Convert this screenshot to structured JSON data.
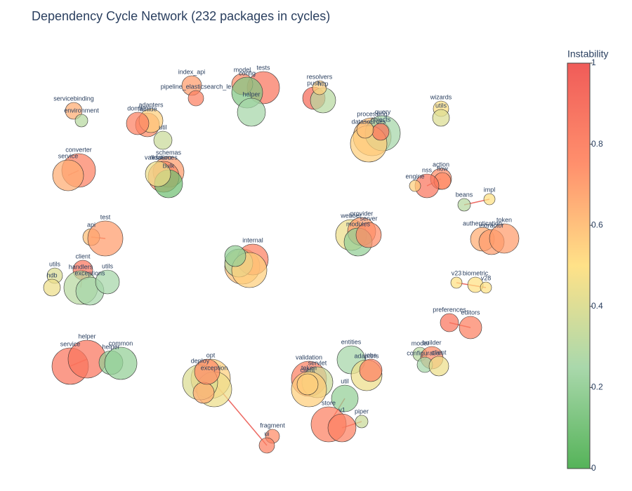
{
  "chart_data": {
    "type": "network",
    "title": "Dependency Cycle Network (232 packages in cycles)",
    "colorbar_title": "Instability",
    "colorbar_ticks": [
      0,
      0.2,
      0.4,
      0.6,
      0.8,
      1
    ],
    "colorscale": [
      [
        0,
        "#4caf50"
      ],
      [
        0.25,
        "#a5d6a7"
      ],
      [
        0.5,
        "#ffe082"
      ],
      [
        0.75,
        "#ff8a65"
      ],
      [
        1,
        "#ef5350"
      ]
    ],
    "edge_color": "#e8453c",
    "nodes": [
      {
        "label": "servicebinding",
        "x": -2.95,
        "y": 2.02,
        "size": 24,
        "instability": 0.65
      },
      {
        "label": "environment",
        "x": -2.84,
        "y": 1.88,
        "size": 18,
        "instability": 0.3
      },
      {
        "label": "converter",
        "x": -2.88,
        "y": 1.17,
        "size": 48,
        "instability": 0.8
      },
      {
        "label": "service",
        "x": -3.03,
        "y": 1.1,
        "size": 44,
        "instability": 0.65
      },
      {
        "label": "api",
        "x": -2.7,
        "y": 0.22,
        "size": 24,
        "instability": 0.6
      },
      {
        "label": "test",
        "x": -2.5,
        "y": 0.2,
        "size": 50,
        "instability": 0.7
      },
      {
        "label": "utils",
        "x": -3.22,
        "y": -0.33,
        "size": 22,
        "instability": 0.4
      },
      {
        "label": "hdb",
        "x": -3.26,
        "y": -0.5,
        "size": 24,
        "instability": 0.45
      },
      {
        "label": "client",
        "x": -2.82,
        "y": -0.25,
        "size": 28,
        "instability": 0.85
      },
      {
        "label": "handlers",
        "x": -2.85,
        "y": -0.5,
        "size": 48,
        "instability": 0.3
      },
      {
        "label": "exceptions",
        "x": -2.72,
        "y": -0.55,
        "size": 40,
        "instability": 0.25
      },
      {
        "label": "utils",
        "x": -2.47,
        "y": -0.42,
        "size": 34,
        "instability": 0.25
      },
      {
        "label": "service",
        "x": -3.0,
        "y": -1.62,
        "size": 52,
        "instability": 0.85
      },
      {
        "label": "helper",
        "x": -2.76,
        "y": -1.52,
        "size": 54,
        "instability": 0.85
      },
      {
        "label": "helper",
        "x": -2.42,
        "y": -1.57,
        "size": 34,
        "instability": 0.2
      },
      {
        "label": "common",
        "x": -2.28,
        "y": -1.58,
        "size": 46,
        "instability": 0.2
      },
      {
        "label": "index_api",
        "x": -1.27,
        "y": 2.38,
        "size": 28,
        "instability": 0.7
      },
      {
        "label": "pipeline_elasticsearch_le",
        "x": -1.21,
        "y": 2.2,
        "size": 22,
        "instability": 0.8
      },
      {
        "label": "facade",
        "x": -1.9,
        "y": 1.82,
        "size": 34,
        "instability": 0.75
      },
      {
        "label": "adapters",
        "x": -1.85,
        "y": 1.88,
        "size": 34,
        "instability": 0.55
      },
      {
        "label": "domain",
        "x": -2.04,
        "y": 1.84,
        "size": 32,
        "instability": 0.8
      },
      {
        "label": "util",
        "x": -1.68,
        "y": 1.6,
        "size": 26,
        "instability": 0.35
      },
      {
        "label": "schemas",
        "x": -1.6,
        "y": 1.15,
        "size": 44,
        "instability": 0.7
      },
      {
        "label": "resources",
        "x": -1.67,
        "y": 1.08,
        "size": 44,
        "instability": 0.75
      },
      {
        "label": "bulk",
        "x": -1.6,
        "y": 0.98,
        "size": 40,
        "instability": 0.1
      },
      {
        "label": "validation",
        "x": -1.75,
        "y": 1.12,
        "size": 36,
        "instability": 0.45
      },
      {
        "label": "tests",
        "x": -0.25,
        "y": 2.35,
        "size": 46,
        "instability": 0.85
      },
      {
        "label": "model",
        "x": -0.55,
        "y": 2.4,
        "size": 30,
        "instability": 0.75
      },
      {
        "label": "config",
        "x": -0.48,
        "y": 2.28,
        "size": 44,
        "instability": 0.15
      },
      {
        "label": "helper",
        "x": -0.42,
        "y": 2.0,
        "size": 40,
        "instability": 0.25
      },
      {
        "label": "push",
        "x": 0.47,
        "y": 2.2,
        "size": 32,
        "instability": 0.9
      },
      {
        "label": "http",
        "x": 0.6,
        "y": 2.17,
        "size": 36,
        "instability": 0.3
      },
      {
        "label": "resolvers",
        "x": 0.55,
        "y": 2.35,
        "size": 20,
        "instability": 0.55
      },
      {
        "label": "wizards",
        "x": 2.28,
        "y": 2.05,
        "size": 22,
        "instability": 0.5
      },
      {
        "label": "utils",
        "x": 2.28,
        "y": 1.92,
        "size": 24,
        "instability": 0.4
      },
      {
        "label": "processing",
        "x": 1.3,
        "y": 1.65,
        "size": 54,
        "instability": 0.6
      },
      {
        "label": "query",
        "x": 1.45,
        "y": 1.7,
        "size": 50,
        "instability": 0.25
      },
      {
        "label": "datasources",
        "x": 1.25,
        "y": 1.55,
        "size": 52,
        "instability": 0.55
      },
      {
        "label": "objects",
        "x": 1.42,
        "y": 1.72,
        "size": 24,
        "instability": 0.85
      },
      {
        "label": null,
        "x": 1.2,
        "y": 1.75,
        "size": 24,
        "instability": 0.6
      },
      {
        "label": "action",
        "x": 2.28,
        "y": 1.05,
        "size": 30,
        "instability": 0.75
      },
      {
        "label": "flow",
        "x": 2.3,
        "y": 1.02,
        "size": 24,
        "instability": 0.75
      },
      {
        "label": "nss",
        "x": 2.08,
        "y": 0.95,
        "size": 34,
        "instability": 0.85
      },
      {
        "label": "engine",
        "x": 1.91,
        "y": 0.95,
        "size": 16,
        "instability": 0.55
      },
      {
        "label": "beans",
        "x": 2.61,
        "y": 0.68,
        "size": 18,
        "instability": 0.3
      },
      {
        "label": "impl",
        "x": 2.97,
        "y": 0.76,
        "size": 16,
        "instability": 0.5
      },
      {
        "label": "authentication",
        "x": 2.87,
        "y": 0.19,
        "size": 34,
        "instability": 0.65
      },
      {
        "label": "extractor",
        "x": 3.0,
        "y": 0.15,
        "size": 36,
        "instability": 0.7
      },
      {
        "label": "token",
        "x": 3.18,
        "y": 0.2,
        "size": 42,
        "instability": 0.7
      },
      {
        "label": null,
        "x": -0.55,
        "y": -0.2,
        "size": 50,
        "instability": 0.6
      },
      {
        "label": "internal",
        "x": -0.4,
        "y": -0.1,
        "size": 44,
        "instability": 0.8
      },
      {
        "label": null,
        "x": -0.6,
        "y": -0.15,
        "size": 40,
        "instability": 0.3
      },
      {
        "label": null,
        "x": -0.45,
        "y": -0.25,
        "size": 50,
        "instability": 0.55
      },
      {
        "label": null,
        "x": -0.65,
        "y": -0.05,
        "size": 30,
        "instability": 0.2
      },
      {
        "label": "webber",
        "x": 1.0,
        "y": 0.25,
        "size": 44,
        "instability": 0.45
      },
      {
        "label": "provider",
        "x": 1.15,
        "y": 0.3,
        "size": 40,
        "instability": 0.7
      },
      {
        "label": "modules",
        "x": 1.1,
        "y": 0.15,
        "size": 40,
        "instability": 0.2
      },
      {
        "label": "server",
        "x": 1.25,
        "y": 0.25,
        "size": 36,
        "instability": 0.75
      },
      {
        "label": "v23",
        "x": 2.5,
        "y": -0.43,
        "size": 16,
        "instability": 0.5
      },
      {
        "label": "biometric",
        "x": 2.77,
        "y": -0.46,
        "size": 22,
        "instability": 0.5
      },
      {
        "label": "v28",
        "x": 2.92,
        "y": -0.5,
        "size": 16,
        "instability": 0.5
      },
      {
        "label": "preferences",
        "x": 2.4,
        "y": -1.0,
        "size": 26,
        "instability": 0.85
      },
      {
        "label": "editors",
        "x": 2.7,
        "y": -1.07,
        "size": 32,
        "instability": 0.8
      },
      {
        "label": "model",
        "x": 1.98,
        "y": -1.45,
        "size": 20,
        "instability": 0.3
      },
      {
        "label": "builder",
        "x": 2.15,
        "y": -1.5,
        "size": 32,
        "instability": 0.75
      },
      {
        "label": "configuration",
        "x": 2.05,
        "y": -1.6,
        "size": 22,
        "instability": 0.25
      },
      {
        "label": "client",
        "x": 2.25,
        "y": -1.62,
        "size": 28,
        "instability": 0.45
      },
      {
        "label": "entities",
        "x": 1.0,
        "y": -1.53,
        "size": 40,
        "instability": 0.25
      },
      {
        "label": "adapters",
        "x": 1.22,
        "y": -1.75,
        "size": 44,
        "instability": 0.45
      },
      {
        "label": "jobs",
        "x": 1.28,
        "y": -1.68,
        "size": 32,
        "instability": 0.8
      },
      {
        "label": "validation",
        "x": 0.4,
        "y": -1.8,
        "size": 50,
        "instability": 0.8
      },
      {
        "label": "servlet",
        "x": 0.52,
        "y": -1.85,
        "size": 44,
        "instability": 0.35
      },
      {
        "label": "token",
        "x": 0.4,
        "y": -1.95,
        "size": 50,
        "instability": 0.55
      },
      {
        "label": "client",
        "x": 0.38,
        "y": -1.88,
        "size": 30,
        "instability": 0.55
      },
      {
        "label": "util",
        "x": 0.91,
        "y": -2.08,
        "size": 38,
        "instability": 0.2
      },
      {
        "label": "store",
        "x": 0.68,
        "y": -2.45,
        "size": 50,
        "instability": 0.8
      },
      {
        "label": "v1",
        "x": 0.87,
        "y": -2.5,
        "size": 40,
        "instability": 0.8
      },
      {
        "label": "piper",
        "x": 1.15,
        "y": -2.41,
        "size": 18,
        "instability": 0.35
      },
      {
        "label": "fragment",
        "x": -0.12,
        "y": -2.62,
        "size": 20,
        "instability": 0.75
      },
      {
        "label": "ui",
        "x": -0.2,
        "y": -2.75,
        "size": 22,
        "instability": 0.8
      },
      {
        "label": "opt",
        "x": -1.0,
        "y": -1.8,
        "size": 56,
        "instability": 0.55
      },
      {
        "label": "exception",
        "x": -0.95,
        "y": -1.95,
        "size": 50,
        "instability": 0.45
      },
      {
        "label": "deploy",
        "x": -1.15,
        "y": -1.85,
        "size": 50,
        "instability": 0.4
      },
      {
        "label": null,
        "x": -1.1,
        "y": -2.0,
        "size": 30,
        "instability": 0.65
      },
      {
        "label": null,
        "x": -1.05,
        "y": -1.7,
        "size": 36,
        "instability": 0.75
      }
    ],
    "edges": [
      [
        44,
        45
      ],
      [
        58,
        60
      ],
      [
        61,
        62
      ],
      [
        2,
        3
      ],
      [
        4,
        5
      ],
      [
        12,
        13
      ],
      [
        8,
        9
      ],
      [
        74,
        75
      ],
      [
        76,
        77
      ],
      [
        79,
        80
      ],
      [
        40,
        42
      ]
    ]
  }
}
